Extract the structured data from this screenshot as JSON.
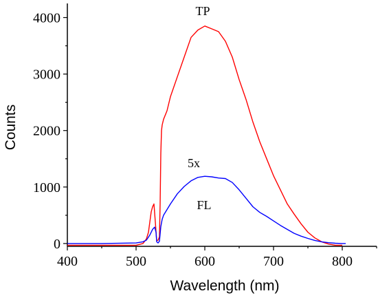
{
  "chart_data": {
    "type": "line",
    "xlabel": "Wavelength (nm)",
    "ylabel": "Counts",
    "xlim": [
      400,
      850
    ],
    "ylim": [
      -50,
      4250
    ],
    "x_ticks": [
      400,
      500,
      600,
      700,
      800
    ],
    "y_ticks": [
      0,
      1000,
      2000,
      3000,
      4000
    ],
    "grid": false,
    "series": [
      {
        "name": "TP",
        "color": "#ff0000",
        "x": [
          400,
          450,
          500,
          510,
          515,
          518,
          520,
          522,
          524,
          526,
          528,
          530,
          532,
          534,
          535,
          536,
          537,
          538,
          540,
          545,
          550,
          560,
          570,
          580,
          590,
          600,
          610,
          620,
          630,
          640,
          650,
          660,
          670,
          680,
          690,
          700,
          710,
          720,
          730,
          740,
          750,
          760,
          770,
          780,
          790,
          800
        ],
        "y": [
          -30,
          -30,
          -30,
          0,
          80,
          200,
          380,
          560,
          650,
          700,
          380,
          50,
          60,
          120,
          700,
          1600,
          2000,
          2100,
          2200,
          2350,
          2600,
          2950,
          3300,
          3650,
          3780,
          3850,
          3800,
          3750,
          3580,
          3300,
          2900,
          2550,
          2150,
          1800,
          1500,
          1200,
          950,
          700,
          520,
          350,
          200,
          100,
          30,
          -10,
          -30,
          -30
        ]
      },
      {
        "name": "FL",
        "color": "#0000ff",
        "x": [
          400,
          450,
          500,
          510,
          515,
          520,
          524,
          527,
          529,
          530,
          532,
          534,
          536,
          538,
          540,
          550,
          560,
          570,
          580,
          590,
          600,
          610,
          620,
          630,
          640,
          650,
          660,
          670,
          680,
          690,
          700,
          710,
          720,
          730,
          740,
          750,
          760,
          770,
          780,
          790,
          800,
          805
        ],
        "y": [
          0,
          0,
          10,
          30,
          60,
          150,
          250,
          290,
          200,
          30,
          10,
          40,
          300,
          430,
          500,
          700,
          880,
          1010,
          1110,
          1170,
          1190,
          1180,
          1160,
          1150,
          1080,
          950,
          800,
          650,
          550,
          480,
          400,
          320,
          250,
          180,
          130,
          90,
          55,
          30,
          15,
          5,
          0,
          0
        ]
      }
    ],
    "annotations": [
      "TP",
      "5x",
      "FL"
    ]
  }
}
